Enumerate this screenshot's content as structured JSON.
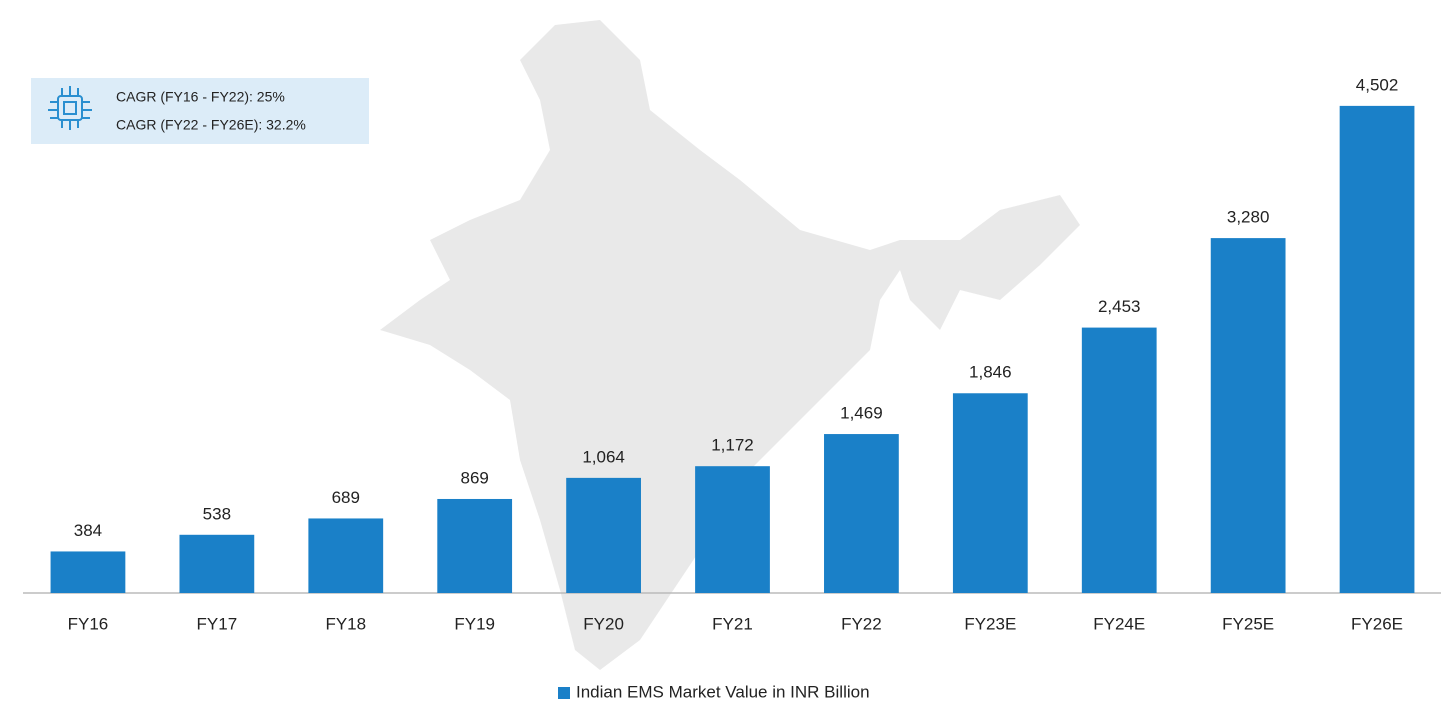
{
  "chart_data": {
    "type": "bar",
    "annotations": [
      "CAGR (FY16 - FY22): 25%",
      "CAGR (FY22 - FY26E): 32.2%"
    ],
    "categories": [
      "FY16",
      "FY17",
      "FY18",
      "FY19",
      "FY20",
      "FY21",
      "FY22",
      "FY23E",
      "FY24E",
      "FY25E",
      "FY26E"
    ],
    "series": [
      {
        "name": "Indian EMS Market Value in INR Billion",
        "color": "#1a80c8",
        "values": [
          384,
          538,
          689,
          869,
          1064,
          1172,
          1469,
          1846,
          2453,
          3280,
          4502
        ],
        "value_labels": [
          "384",
          "538",
          "689",
          "869",
          "1,064",
          "1,172",
          "1,469",
          "1,846",
          "2,453",
          "3,280",
          "4,502"
        ]
      }
    ],
    "ylim": [
      0,
      5000
    ]
  }
}
